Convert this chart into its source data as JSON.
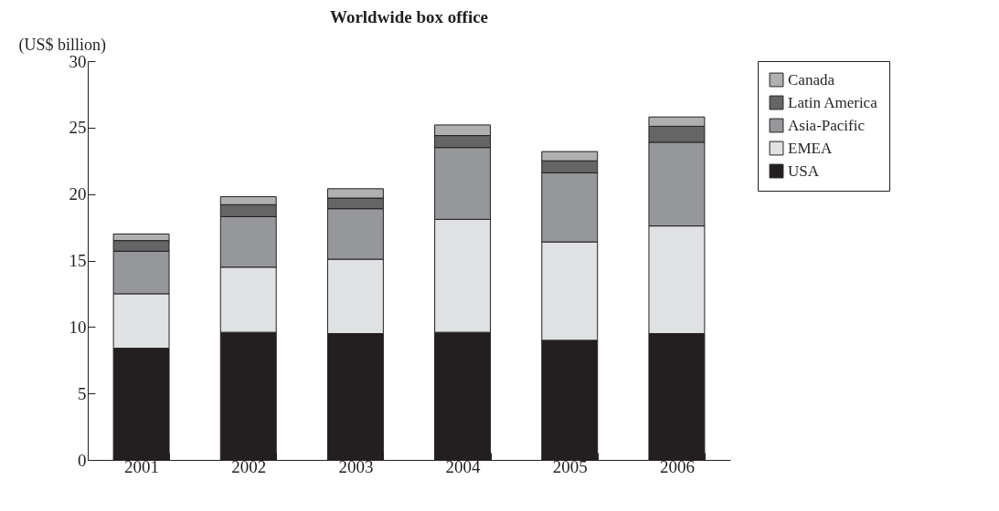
{
  "chart_data": {
    "type": "bar",
    "title": "Worldwide box office",
    "ylabel": "(US$ billion)",
    "categories": [
      "2001",
      "2002",
      "2003",
      "2004",
      "2005",
      "2006"
    ],
    "series": [
      {
        "name": "USA",
        "color": "#231f20",
        "values": [
          8.4,
          9.6,
          9.5,
          9.6,
          9.0,
          9.5
        ]
      },
      {
        "name": "EMEA",
        "color": "#e0e1e3",
        "values": [
          4.1,
          4.9,
          5.6,
          8.5,
          7.4,
          8.1
        ]
      },
      {
        "name": "Asia-Pacific",
        "color": "#96979b",
        "values": [
          3.2,
          3.8,
          3.8,
          5.4,
          5.2,
          6.3
        ]
      },
      {
        "name": "Latin America",
        "color": "#656566",
        "values": [
          0.8,
          0.9,
          0.8,
          0.9,
          0.9,
          1.2
        ]
      },
      {
        "name": "Canada",
        "color": "#b0b0b1",
        "values": [
          0.5,
          0.6,
          0.7,
          0.8,
          0.7,
          0.7
        ]
      }
    ],
    "stacked": true,
    "ylim": [
      0,
      30
    ],
    "yticks": [
      0,
      5,
      10,
      15,
      20,
      25,
      30
    ],
    "grid": false,
    "legend": "right"
  }
}
